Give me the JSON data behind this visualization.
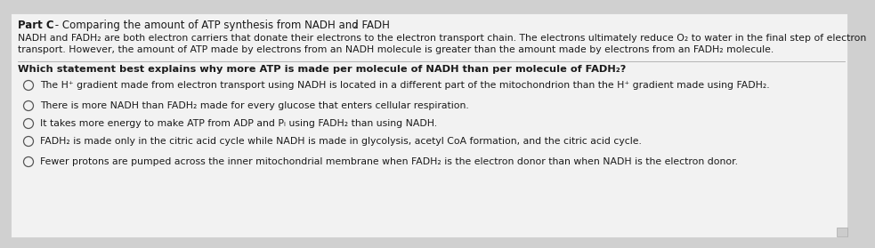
{
  "background_color": "#e8e8e8",
  "content_bg": "#f0f0f0",
  "part_label": "Part C - Comparing the amount of ATP synthesis from NADH and FADH",
  "part_sub": "2",
  "intro_line1": "NADH and FADH₂ are both electron carriers that donate their electrons to the electron transport chain. The electrons ultimately reduce O₂ to water in the final step of electron",
  "intro_line2": "transport. However, the amount of ATP made by electrons from an NADH molecule is greater than the amount made by electrons from an FADH₂ molecule.",
  "question": "Which statement best explains why more ATP is made per molecule of NADH than per molecule of FADH₂?",
  "options": [
    "The H⁺ gradient made from electron transport using NADH is located in a different part of the mitochondrion than the H⁺ gradient made using FADH₂.",
    "There is more NADH than FADH₂ made for every glucose that enters cellular respiration.",
    "It takes more energy to make ATP from ADP and Pᵢ using FADH₂ than using NADH.",
    "FADH₂ is made only in the citric acid cycle while NADH is made in glycolysis, acetyl CoA formation, and the citric acid cycle.",
    "Fewer protons are pumped across the inner mitochondrial membrane when FADH₂ is the electron donor than when NADH is the electron donor."
  ],
  "font_color": "#1a1a1a",
  "font_size_part": 8.5,
  "font_size_intro": 7.8,
  "font_size_question": 8.2,
  "font_size_options": 7.8,
  "circle_color": "#555555"
}
